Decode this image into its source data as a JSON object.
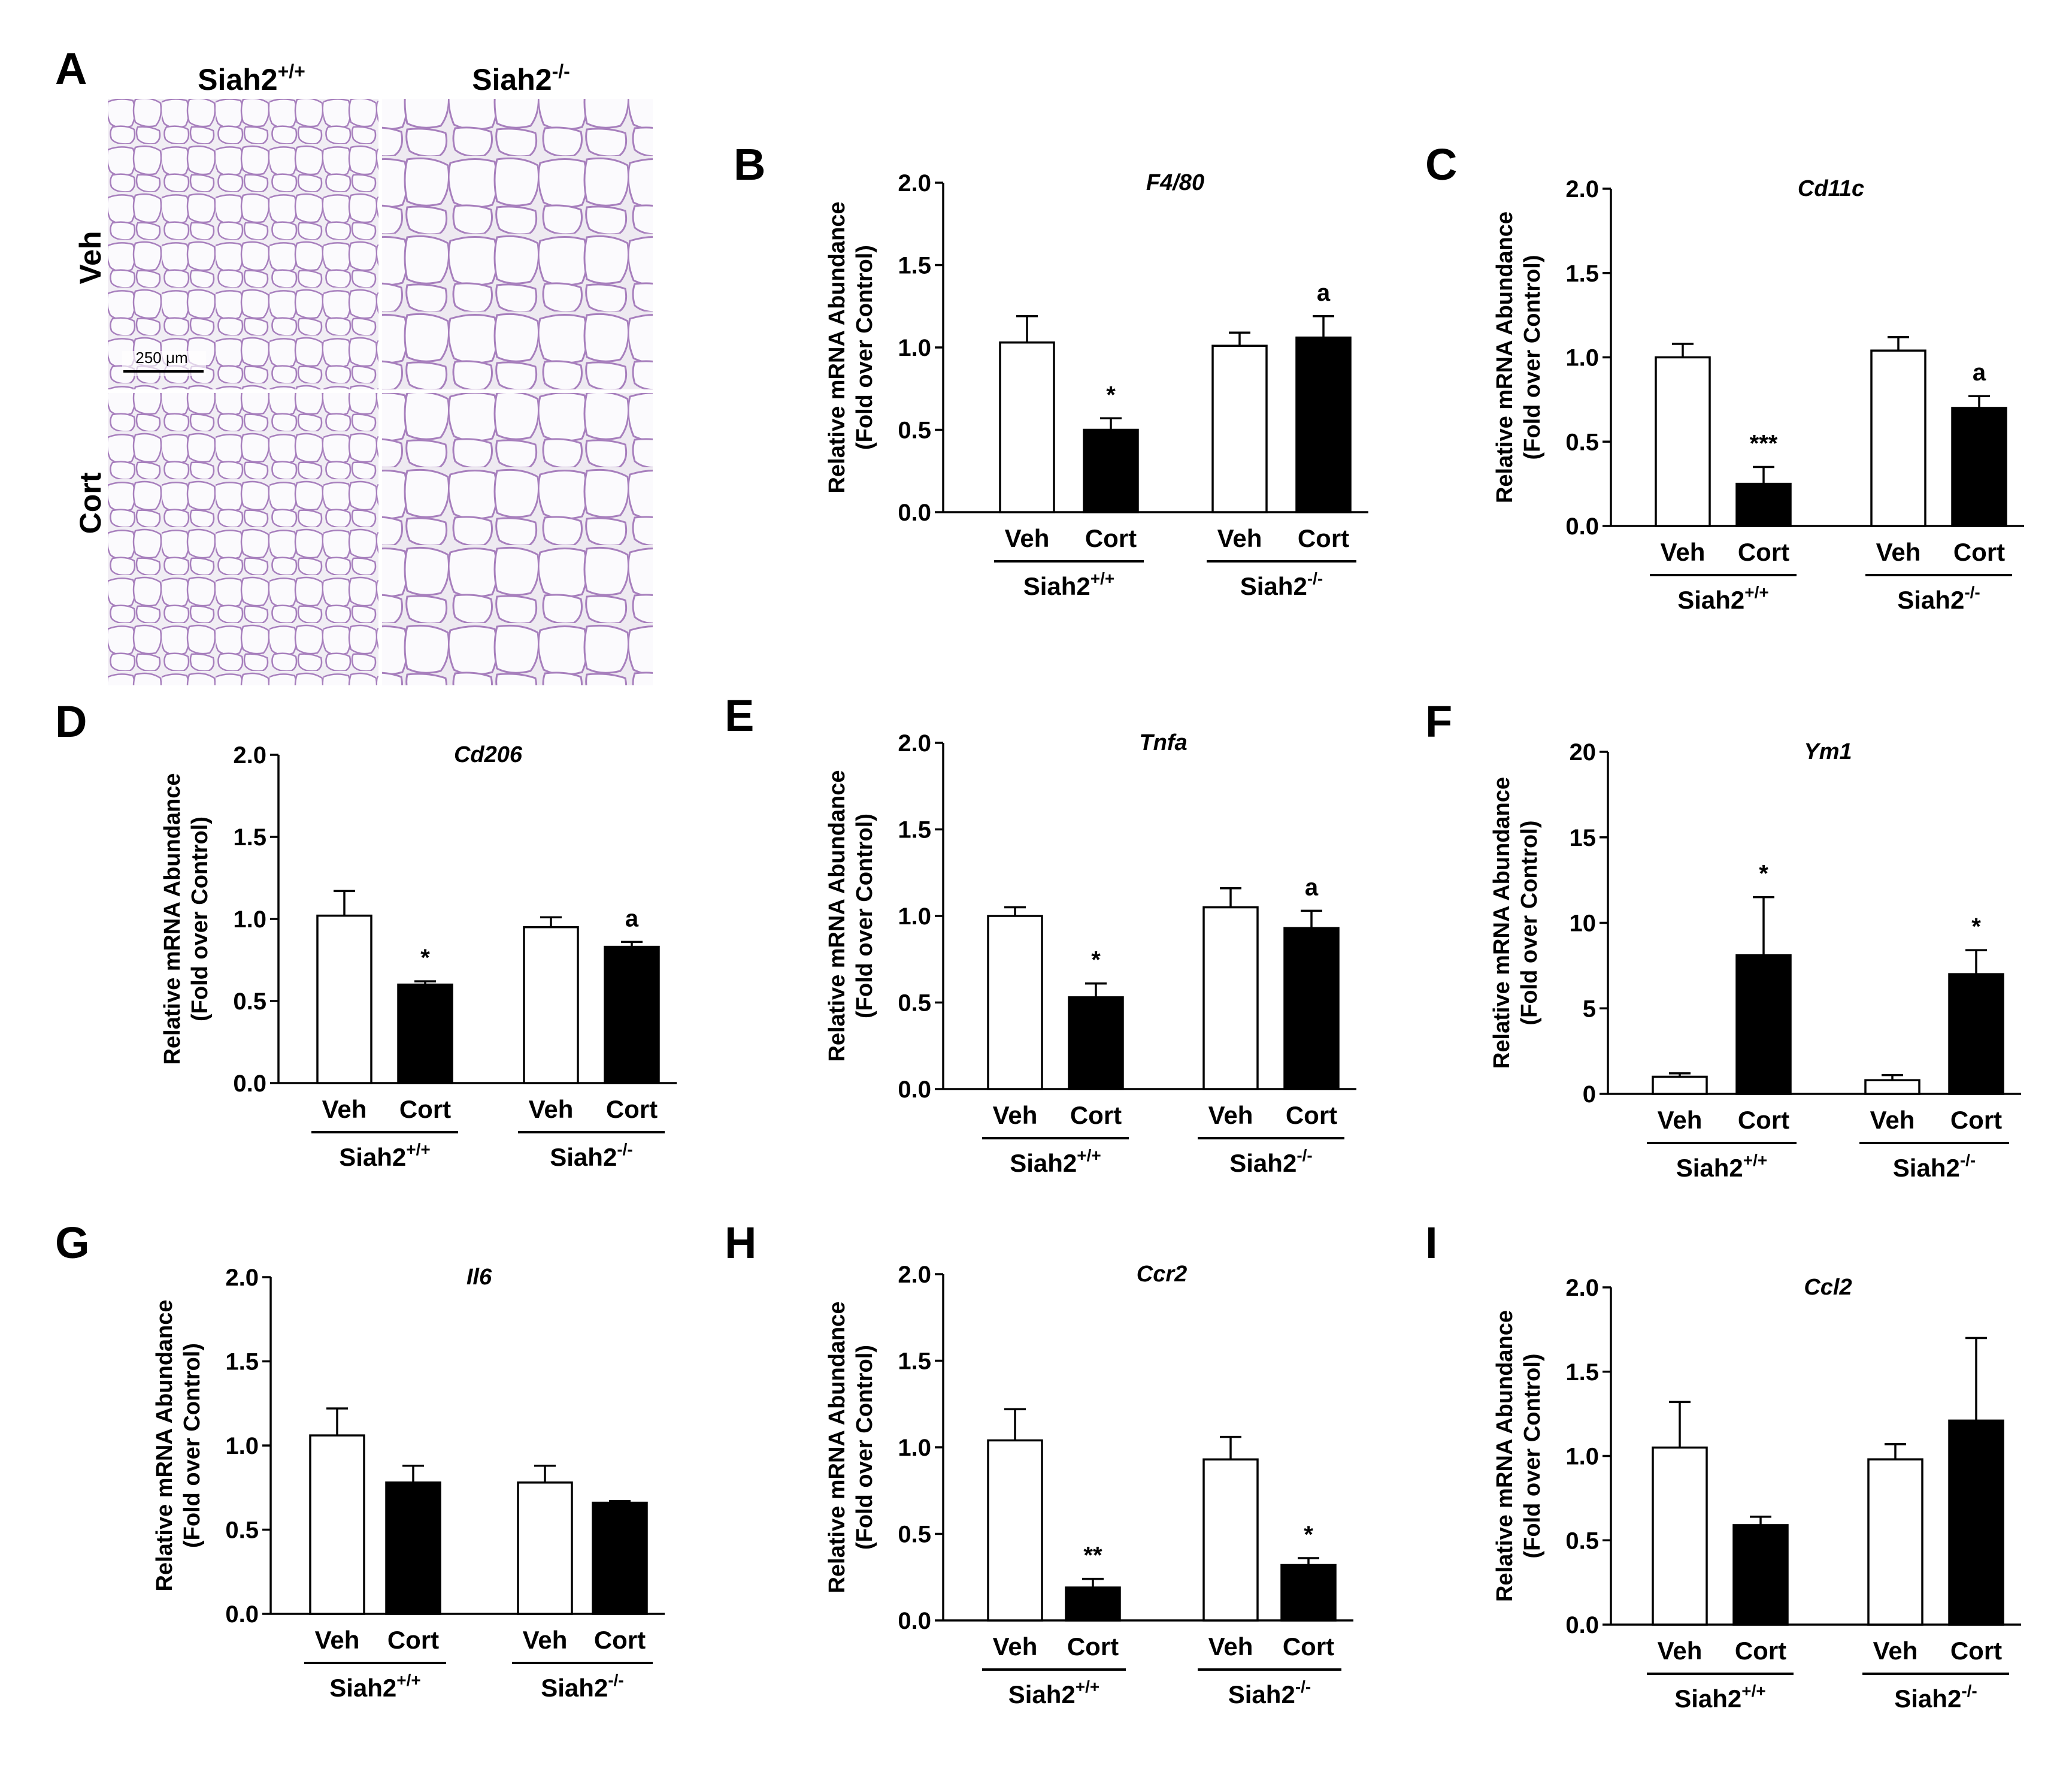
{
  "panel_a": {
    "letter": "A",
    "columns": [
      "Siah2",
      "Siah2"
    ],
    "column_superscripts": [
      "+/+",
      "-/-"
    ],
    "rows": [
      "Veh",
      "Cort"
    ],
    "scale_bar": "250 μm"
  },
  "colors": {
    "veh_fill": "#ffffff",
    "cort_fill": "#000000",
    "stain": "#9a6fb2",
    "background_tissue": "#f1eef4"
  },
  "chart_data": [
    {
      "letter": "B",
      "type": "bar",
      "title": "F4/80",
      "ylabel_lines": [
        "Relative mRNA Abundance",
        "(Fold over Control)"
      ],
      "ylim": [
        0,
        2
      ],
      "yticks": [
        "0.0",
        "0.5",
        "1.0",
        "1.5",
        "2.0"
      ],
      "categories": [
        "Veh",
        "Cort",
        "Veh",
        "Cort"
      ],
      "groups": [
        {
          "name": "Siah2",
          "sup": "+/+"
        },
        {
          "name": "Siah2",
          "sup": "-/-"
        }
      ],
      "values": [
        1.03,
        0.5,
        1.01,
        1.06
      ],
      "errors": [
        0.16,
        0.07,
        0.08,
        0.13
      ],
      "annotations": [
        "",
        "*",
        "",
        "a"
      ]
    },
    {
      "letter": "C",
      "type": "bar",
      "title": "Cd11c",
      "ylabel_lines": [
        "Relative mRNA Abundance",
        "(Fold over Control)"
      ],
      "ylim": [
        0,
        2
      ],
      "yticks": [
        "0.0",
        "0.5",
        "1.0",
        "1.5",
        "2.0"
      ],
      "categories": [
        "Veh",
        "Cort",
        "Veh",
        "Cort"
      ],
      "groups": [
        {
          "name": "Siah2",
          "sup": "+/+"
        },
        {
          "name": "Siah2",
          "sup": "-/-"
        }
      ],
      "values": [
        1.0,
        0.25,
        1.04,
        0.7
      ],
      "errors": [
        0.08,
        0.1,
        0.08,
        0.07
      ],
      "annotations": [
        "",
        "***",
        "",
        "a"
      ]
    },
    {
      "letter": "D",
      "type": "bar",
      "title": "Cd206",
      "ylabel_lines": [
        "Relative mRNA Abundance",
        "(Fold over Control)"
      ],
      "ylim": [
        0,
        2
      ],
      "yticks": [
        "0.0",
        "0.5",
        "1.0",
        "1.5",
        "2.0"
      ],
      "categories": [
        "Veh",
        "Cort",
        "Veh",
        "Cort"
      ],
      "groups": [
        {
          "name": "Siah2",
          "sup": "+/+"
        },
        {
          "name": "Siah2",
          "sup": "-/-"
        }
      ],
      "values": [
        1.02,
        0.6,
        0.95,
        0.83
      ],
      "errors": [
        0.15,
        0.02,
        0.06,
        0.03
      ],
      "annotations": [
        "",
        "*",
        "",
        "a"
      ]
    },
    {
      "letter": "E",
      "type": "bar",
      "title": "Tnfa",
      "ylabel_lines": [
        "Relative mRNA Abundance",
        "(Fold over Control)"
      ],
      "ylim": [
        0,
        2
      ],
      "yticks": [
        "0.0",
        "0.5",
        "1.0",
        "1.5",
        "2.0"
      ],
      "categories": [
        "Veh",
        "Cort",
        "Veh",
        "Cort"
      ],
      "groups": [
        {
          "name": "Siah2",
          "sup": "+/+"
        },
        {
          "name": "Siah2",
          "sup": "-/-"
        }
      ],
      "values": [
        1.0,
        0.53,
        1.05,
        0.93
      ],
      "errors": [
        0.05,
        0.08,
        0.11,
        0.1
      ],
      "annotations": [
        "",
        "*",
        "",
        "a"
      ]
    },
    {
      "letter": "F",
      "type": "bar",
      "title": "Ym1",
      "ylabel_lines": [
        "Relative mRNA Abundance",
        "(Fold over Control)"
      ],
      "ylim": [
        0,
        20
      ],
      "yticks": [
        "0",
        "5",
        "10",
        "15",
        "20"
      ],
      "categories": [
        "Veh",
        "Cort",
        "Veh",
        "Cort"
      ],
      "groups": [
        {
          "name": "Siah2",
          "sup": "+/+"
        },
        {
          "name": "Siah2",
          "sup": "-/-"
        }
      ],
      "values": [
        1.0,
        8.1,
        0.8,
        7.0
      ],
      "errors": [
        0.2,
        3.4,
        0.3,
        1.4
      ],
      "annotations": [
        "",
        "*",
        "",
        "*"
      ]
    },
    {
      "letter": "G",
      "type": "bar",
      "title": "Il6",
      "ylabel_lines": [
        "Relative mRNA Abundance",
        "(Fold over Control)"
      ],
      "ylim": [
        0,
        2
      ],
      "yticks": [
        "0.0",
        "0.5",
        "1.0",
        "1.5",
        "2.0"
      ],
      "categories": [
        "Veh",
        "Cort",
        "Veh",
        "Cort"
      ],
      "groups": [
        {
          "name": "Siah2",
          "sup": "+/+"
        },
        {
          "name": "Siah2",
          "sup": "-/-"
        }
      ],
      "values": [
        1.06,
        0.78,
        0.78,
        0.66
      ],
      "errors": [
        0.16,
        0.1,
        0.1,
        0.01
      ],
      "annotations": [
        "",
        "",
        "",
        ""
      ]
    },
    {
      "letter": "H",
      "type": "bar",
      "title": "Ccr2",
      "ylabel_lines": [
        "Relative mRNA Abundance",
        "(Fold over Control)"
      ],
      "ylim": [
        0,
        2
      ],
      "yticks": [
        "0.0",
        "0.5",
        "1.0",
        "1.5",
        "2.0"
      ],
      "categories": [
        "Veh",
        "Cort",
        "Veh",
        "Cort"
      ],
      "groups": [
        {
          "name": "Siah2",
          "sup": "+/+"
        },
        {
          "name": "Siah2",
          "sup": "-/-"
        }
      ],
      "values": [
        1.04,
        0.19,
        0.93,
        0.32
      ],
      "errors": [
        0.18,
        0.05,
        0.13,
        0.04
      ],
      "annotations": [
        "",
        "**",
        "",
        "*"
      ]
    },
    {
      "letter": "I",
      "type": "bar",
      "title": "Ccl2",
      "ylabel_lines": [
        "Relative mRNA Abundance",
        "(Fold over Control)"
      ],
      "ylim": [
        0,
        2
      ],
      "yticks": [
        "0.0",
        "0.5",
        "1.0",
        "1.5",
        "2.0"
      ],
      "categories": [
        "Veh",
        "Cort",
        "Veh",
        "Cort"
      ],
      "groups": [
        {
          "name": "Siah2",
          "sup": "+/+"
        },
        {
          "name": "Siah2",
          "sup": "-/-"
        }
      ],
      "values": [
        1.05,
        0.59,
        0.98,
        1.21
      ],
      "errors": [
        0.27,
        0.05,
        0.09,
        0.49
      ],
      "annotations": [
        "",
        "",
        "",
        ""
      ]
    }
  ]
}
